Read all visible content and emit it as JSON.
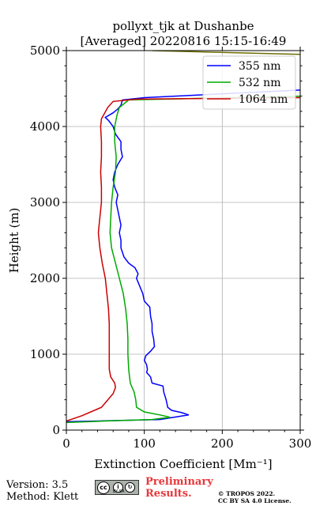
{
  "chart_data": {
    "type": "line",
    "title_line1": "pollyxt_tjk at Dushanbe",
    "title_line2": "[Averaged] 20220816 15:15-16:49",
    "xlabel": "Extinction Coefficient [Mm⁻¹]",
    "ylabel": "Height (m)",
    "xlim": [
      0,
      300
    ],
    "ylim": [
      0,
      5000
    ],
    "xticks": [
      0,
      100,
      200,
      300
    ],
    "yticks": [
      0,
      1000,
      2000,
      3000,
      4000,
      5000
    ],
    "grid": true,
    "legend_position": "top-right",
    "series": [
      {
        "name": "355 nm",
        "color": "#0000ff",
        "points": [
          [
            0,
            110
          ],
          [
            40,
            120
          ],
          [
            120,
            140
          ],
          [
            157,
            200
          ],
          [
            148,
            230
          ],
          [
            135,
            260
          ],
          [
            130,
            300
          ],
          [
            128,
            400
          ],
          [
            125,
            500
          ],
          [
            124,
            580
          ],
          [
            110,
            620
          ],
          [
            108,
            700
          ],
          [
            103,
            760
          ],
          [
            104,
            800
          ],
          [
            103,
            860
          ],
          [
            100,
            920
          ],
          [
            102,
            980
          ],
          [
            108,
            1040
          ],
          [
            113,
            1100
          ],
          [
            112,
            1200
          ],
          [
            110,
            1300
          ],
          [
            110,
            1400
          ],
          [
            108,
            1500
          ],
          [
            107,
            1620
          ],
          [
            100,
            1700
          ],
          [
            98,
            1800
          ],
          [
            94,
            1900
          ],
          [
            90,
            2000
          ],
          [
            92,
            2060
          ],
          [
            88,
            2140
          ],
          [
            80,
            2200
          ],
          [
            74,
            2280
          ],
          [
            70,
            2400
          ],
          [
            70,
            2500
          ],
          [
            68,
            2600
          ],
          [
            70,
            2700
          ],
          [
            68,
            2800
          ],
          [
            66,
            2900
          ],
          [
            64,
            3000
          ],
          [
            66,
            3100
          ],
          [
            62,
            3200
          ],
          [
            60,
            3300
          ],
          [
            62,
            3400
          ],
          [
            66,
            3500
          ],
          [
            72,
            3600
          ],
          [
            70,
            3700
          ],
          [
            70,
            3800
          ],
          [
            63,
            3900
          ],
          [
            60,
            4000
          ],
          [
            54,
            4080
          ],
          [
            50,
            4120
          ],
          [
            60,
            4180
          ],
          [
            66,
            4230
          ],
          [
            70,
            4280
          ],
          [
            72,
            4350
          ],
          [
            100,
            4380
          ],
          [
            300,
            4480
          ]
        ]
      },
      {
        "name": "532 nm",
        "color": "#00aa00",
        "points": [
          [
            0,
            100
          ],
          [
            50,
            120
          ],
          [
            110,
            140
          ],
          [
            133,
            170
          ],
          [
            120,
            200
          ],
          [
            100,
            240
          ],
          [
            90,
            300
          ],
          [
            89,
            400
          ],
          [
            87,
            500
          ],
          [
            82,
            620
          ],
          [
            80,
            800
          ],
          [
            79,
            1000
          ],
          [
            79,
            1200
          ],
          [
            78,
            1400
          ],
          [
            76,
            1600
          ],
          [
            73,
            1800
          ],
          [
            68,
            2000
          ],
          [
            63,
            2200
          ],
          [
            58,
            2400
          ],
          [
            56,
            2600
          ],
          [
            57,
            2800
          ],
          [
            58,
            3000
          ],
          [
            60,
            3200
          ],
          [
            63,
            3400
          ],
          [
            64,
            3600
          ],
          [
            62,
            3800
          ],
          [
            62,
            4000
          ],
          [
            65,
            4150
          ],
          [
            68,
            4250
          ],
          [
            80,
            4350
          ],
          [
            300,
            4400
          ]
        ]
      },
      {
        "name": "1064 nm",
        "color": "#cc0000",
        "points": [
          [
            0,
            120
          ],
          [
            20,
            190
          ],
          [
            45,
            300
          ],
          [
            60,
            480
          ],
          [
            63,
            560
          ],
          [
            62,
            620
          ],
          [
            57,
            700
          ],
          [
            55,
            800
          ],
          [
            55,
            1000
          ],
          [
            55,
            1200
          ],
          [
            55,
            1400
          ],
          [
            54,
            1600
          ],
          [
            52,
            1800
          ],
          [
            50,
            2000
          ],
          [
            46,
            2200
          ],
          [
            43,
            2400
          ],
          [
            41,
            2600
          ],
          [
            43,
            2800
          ],
          [
            45,
            3000
          ],
          [
            45,
            3200
          ],
          [
            44,
            3400
          ],
          [
            45,
            3600
          ],
          [
            45,
            3800
          ],
          [
            44,
            4000
          ],
          [
            45,
            4100
          ],
          [
            53,
            4250
          ],
          [
            60,
            4330
          ],
          [
            90,
            4360
          ],
          [
            300,
            4380
          ]
        ]
      },
      {
        "name": "",
        "color": "#6e6e00",
        "points": [
          [
            110,
            5000
          ],
          [
            300,
            4950
          ]
        ]
      }
    ]
  },
  "footer": {
    "version": "Version: 3.5",
    "method": "Method: Klett",
    "preliminary_line1": "Preliminary",
    "preliminary_line2": "Results.",
    "copyright_line1": "© TROPOS 2022.",
    "copyright_line2": "CC BY SA 4.0 License.",
    "cc_badge_text": "BY SA"
  },
  "icons": {
    "license": "cc-by-sa-icon"
  }
}
